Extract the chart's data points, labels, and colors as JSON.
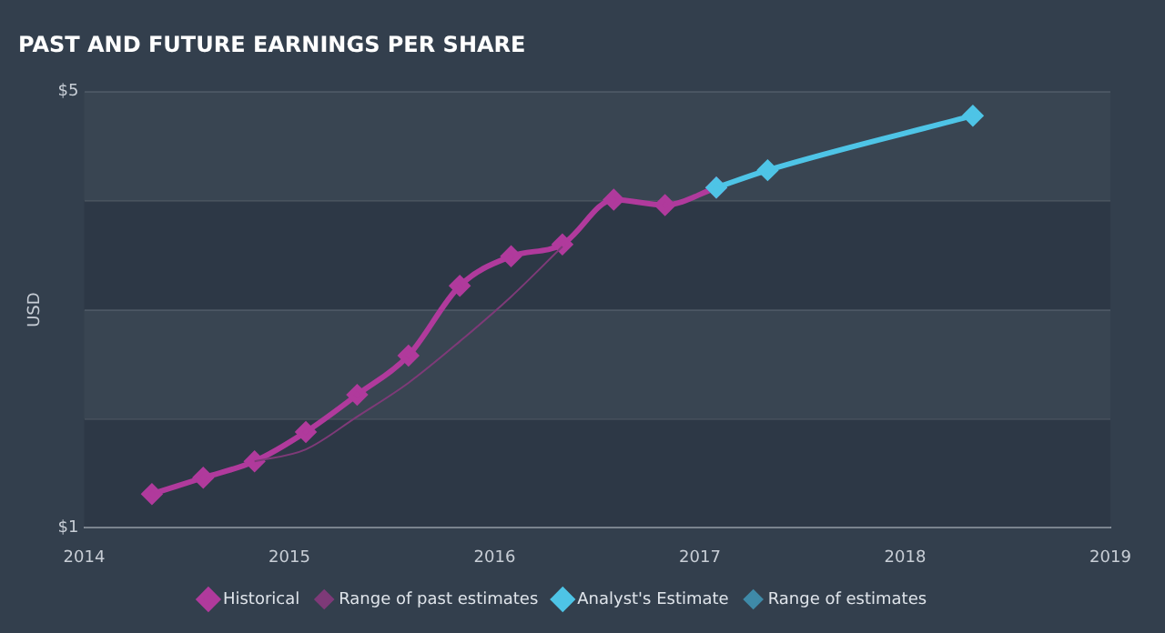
{
  "chart_data": {
    "type": "line",
    "title": "PAST AND FUTURE EARNINGS PER SHARE",
    "ylabel": "USD",
    "xlim": [
      2014,
      2019
    ],
    "xticks": [
      2014,
      2015,
      2016,
      2017,
      2018,
      2019
    ],
    "ylim": [
      1,
      5
    ],
    "yticks": [
      {
        "value": 1,
        "label": "$1"
      },
      {
        "value": 2,
        "label": null
      },
      {
        "value": 3,
        "label": null
      },
      {
        "value": 4,
        "label": null
      },
      {
        "value": 5,
        "label": "$5"
      }
    ],
    "grid": "y",
    "legend": "bottom",
    "marker": "diamond",
    "line_style": "solid",
    "series": [
      {
        "name": "Historical",
        "color": "#b03a9c",
        "x": [
          2014.33,
          2014.58,
          2014.83,
          2015.08,
          2015.33,
          2015.58,
          2015.83,
          2016.08,
          2016.33,
          2016.58,
          2016.83,
          2017.08
        ],
        "values": [
          1.31,
          1.46,
          1.61,
          1.88,
          2.22,
          2.58,
          3.22,
          3.49,
          3.6,
          4.01,
          3.96,
          4.12
        ]
      },
      {
        "name": "Range of past estimates",
        "color": "#7e3a78",
        "marker": "none",
        "x": [
          2014.83,
          2015.08,
          2015.33,
          2015.58,
          2015.83,
          2016.08,
          2016.33
        ],
        "values": [
          1.61,
          1.72,
          2.02,
          2.33,
          2.71,
          3.12,
          3.58
        ]
      },
      {
        "name": "Analyst's Estimate",
        "color": "#4ec4e6",
        "x": [
          2017.08,
          2017.33,
          2018.33
        ],
        "values": [
          4.12,
          4.28,
          4.78
        ]
      },
      {
        "name": "Range of estimates",
        "color": "#3f8aa8",
        "marker": "none"
      }
    ]
  }
}
